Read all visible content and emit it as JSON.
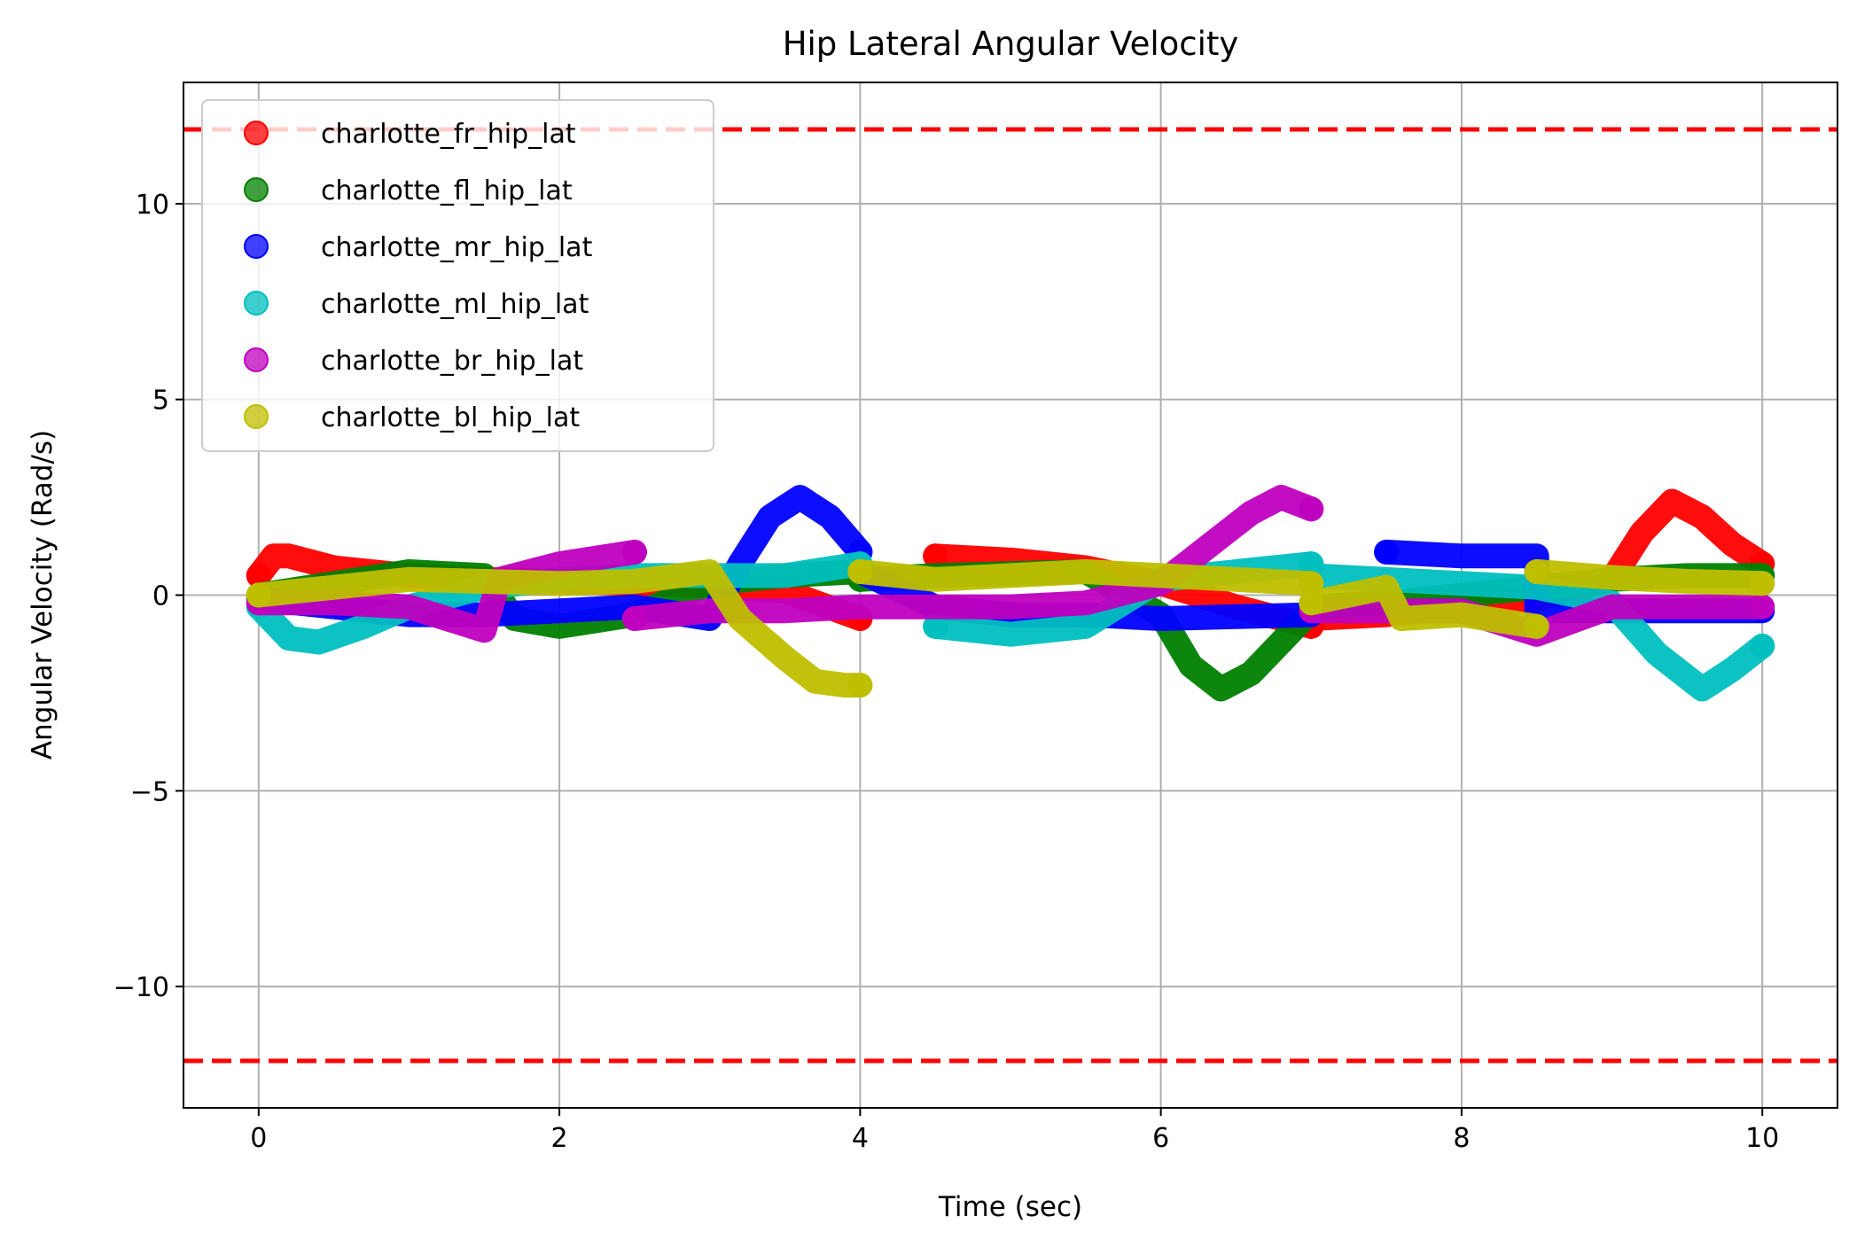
{
  "chart_data": {
    "type": "scatter",
    "title": "Hip Lateral Angular Velocity",
    "xlabel": "Time (sec)",
    "ylabel": "Angular Velocity (Rad/s)",
    "xlim": [
      -0.5,
      10.5
    ],
    "ylim": [
      -13.1,
      13.1
    ],
    "xticks": [
      0,
      2,
      4,
      6,
      8,
      10
    ],
    "xtick_labels": [
      "0",
      "2",
      "4",
      "6",
      "8",
      "10"
    ],
    "yticks": [
      -10,
      -5,
      0,
      5,
      10
    ],
    "ytick_labels": [
      "−10",
      "−5",
      "0",
      "5",
      "10"
    ],
    "grid": true,
    "legend_position": "upper-left",
    "reference_lines": [
      {
        "y": 11.9,
        "color": "#ff0000",
        "style": "dashed"
      },
      {
        "y": -11.9,
        "color": "#ff0000",
        "style": "dashed"
      }
    ],
    "series": [
      {
        "name": "charlotte_fr_hip_lat",
        "color": "#ff0000",
        "segments": [
          [
            [
              0,
              0.5
            ],
            [
              0.1,
              1.0
            ],
            [
              0.2,
              1.0
            ],
            [
              0.5,
              0.7
            ],
            [
              1.0,
              0.5
            ],
            [
              1.5,
              0.4
            ],
            [
              2.0,
              0.35
            ],
            [
              2.5,
              0.3
            ],
            [
              3.0,
              0.25
            ],
            [
              3.5,
              0.1
            ],
            [
              4.0,
              -0.6
            ]
          ],
          [
            [
              4.5,
              1.0
            ],
            [
              5.0,
              0.9
            ],
            [
              5.5,
              0.7
            ],
            [
              6.0,
              0.3
            ],
            [
              6.5,
              -0.3
            ],
            [
              7.0,
              -0.8
            ]
          ],
          [
            [
              7.0,
              -0.6
            ],
            [
              7.5,
              -0.5
            ],
            [
              8.0,
              -0.3
            ],
            [
              8.5,
              -0.1
            ],
            [
              9.0,
              0.4
            ],
            [
              9.2,
              1.6
            ],
            [
              9.4,
              2.4
            ],
            [
              9.6,
              2.0
            ],
            [
              9.8,
              1.3
            ],
            [
              10.0,
              0.8
            ]
          ]
        ]
      },
      {
        "name": "charlotte_fl_hip_lat",
        "color": "#008000",
        "segments": [
          [
            [
              0,
              0.0
            ],
            [
              0.5,
              0.3
            ],
            [
              1.0,
              0.6
            ],
            [
              1.5,
              0.5
            ],
            [
              1.7,
              -0.6
            ],
            [
              2.0,
              -0.8
            ],
            [
              2.5,
              -0.5
            ],
            [
              3.0,
              0.3
            ],
            [
              3.5,
              0.5
            ],
            [
              4.0,
              0.6
            ]
          ],
          [
            [
              4.0,
              0.4
            ],
            [
              4.5,
              0.5
            ],
            [
              5.0,
              0.55
            ],
            [
              5.5,
              0.6
            ],
            [
              6.0,
              -0.5
            ],
            [
              6.2,
              -1.8
            ],
            [
              6.4,
              -2.4
            ],
            [
              6.6,
              -2.0
            ],
            [
              6.8,
              -1.2
            ],
            [
              7.0,
              -0.4
            ]
          ],
          [
            [
              7.0,
              -0.3
            ],
            [
              7.5,
              -0.2
            ],
            [
              8.0,
              0.0
            ],
            [
              8.5,
              0.2
            ],
            [
              9.0,
              0.4
            ],
            [
              9.5,
              0.5
            ],
            [
              10.0,
              0.5
            ]
          ]
        ]
      },
      {
        "name": "charlotte_mr_hip_lat",
        "color": "#0000ff",
        "segments": [
          [
            [
              0,
              -0.1
            ],
            [
              0.5,
              -0.3
            ],
            [
              1.0,
              -0.5
            ],
            [
              1.5,
              -0.5
            ],
            [
              2.0,
              -0.4
            ],
            [
              2.5,
              -0.3
            ],
            [
              3.0,
              -0.6
            ],
            [
              3.2,
              0.8
            ],
            [
              3.4,
              2.0
            ],
            [
              3.6,
              2.5
            ],
            [
              3.8,
              2.0
            ],
            [
              4.0,
              1.1
            ]
          ],
          [
            [
              4.0,
              0.6
            ],
            [
              4.5,
              -0.3
            ],
            [
              5.0,
              -0.5
            ],
            [
              5.5,
              -0.5
            ],
            [
              6.0,
              -0.6
            ],
            [
              6.5,
              -0.55
            ],
            [
              7.0,
              -0.5
            ]
          ],
          [
            [
              7.5,
              1.1
            ],
            [
              8.0,
              1.0
            ],
            [
              8.5,
              1.0
            ],
            [
              8.5,
              -0.4
            ],
            [
              9.0,
              -0.4
            ],
            [
              9.5,
              -0.4
            ],
            [
              10.0,
              -0.4
            ]
          ]
        ]
      },
      {
        "name": "charlotte_ml_hip_lat",
        "color": "#00bfbf",
        "segments": [
          [
            [
              0,
              -0.3
            ],
            [
              0.2,
              -1.1
            ],
            [
              0.4,
              -1.2
            ],
            [
              0.7,
              -0.8
            ],
            [
              1.0,
              -0.3
            ],
            [
              1.5,
              0.2
            ],
            [
              2.0,
              0.4
            ],
            [
              2.5,
              0.5
            ],
            [
              3.0,
              0.5
            ],
            [
              3.5,
              0.5
            ],
            [
              4.0,
              0.8
            ]
          ],
          [
            [
              4.5,
              -0.8
            ],
            [
              5.0,
              -1.0
            ],
            [
              5.5,
              -0.8
            ],
            [
              6.0,
              0.4
            ],
            [
              6.5,
              0.6
            ],
            [
              7.0,
              0.8
            ]
          ],
          [
            [
              7.0,
              0.5
            ],
            [
              7.5,
              0.4
            ],
            [
              8.0,
              0.3
            ],
            [
              8.5,
              0.2
            ],
            [
              9.0,
              -0.2
            ],
            [
              9.3,
              -1.5
            ],
            [
              9.6,
              -2.4
            ],
            [
              9.8,
              -1.9
            ],
            [
              10.0,
              -1.3
            ]
          ]
        ]
      },
      {
        "name": "charlotte_br_hip_lat",
        "color": "#bf00bf",
        "segments": [
          [
            [
              0,
              -0.2
            ],
            [
              0.5,
              -0.2
            ],
            [
              1.0,
              -0.3
            ],
            [
              1.5,
              -0.9
            ],
            [
              1.6,
              0.4
            ],
            [
              2.0,
              0.8
            ],
            [
              2.5,
              1.1
            ]
          ],
          [
            [
              2.5,
              -0.6
            ],
            [
              3.0,
              -0.4
            ],
            [
              3.5,
              -0.4
            ],
            [
              4.0,
              -0.3
            ],
            [
              4.5,
              -0.3
            ],
            [
              5.0,
              -0.3
            ],
            [
              5.5,
              -0.2
            ],
            [
              6.0,
              0.3
            ],
            [
              6.3,
              1.2
            ],
            [
              6.6,
              2.1
            ],
            [
              6.8,
              2.5
            ],
            [
              7.0,
              2.2
            ]
          ],
          [
            [
              7.0,
              -0.4
            ],
            [
              7.5,
              -0.4
            ],
            [
              8.0,
              -0.4
            ],
            [
              8.5,
              -1.0
            ],
            [
              9.0,
              -0.3
            ],
            [
              9.5,
              -0.3
            ],
            [
              10.0,
              -0.3
            ]
          ]
        ]
      },
      {
        "name": "charlotte_bl_hip_lat",
        "color": "#bfbf00",
        "segments": [
          [
            [
              0,
              0.0
            ],
            [
              0.5,
              0.2
            ],
            [
              1.0,
              0.4
            ],
            [
              1.5,
              0.35
            ],
            [
              2.0,
              0.3
            ],
            [
              2.5,
              0.35
            ],
            [
              3.0,
              0.6
            ],
            [
              3.2,
              -0.6
            ],
            [
              3.5,
              -1.6
            ],
            [
              3.7,
              -2.2
            ],
            [
              3.9,
              -2.3
            ],
            [
              4.0,
              -2.3
            ]
          ],
          [
            [
              4.0,
              0.6
            ],
            [
              4.5,
              0.4
            ],
            [
              5.0,
              0.5
            ],
            [
              5.5,
              0.6
            ],
            [
              6.0,
              0.5
            ],
            [
              6.5,
              0.4
            ],
            [
              7.0,
              0.3
            ]
          ],
          [
            [
              7.0,
              -0.2
            ],
            [
              7.5,
              0.2
            ],
            [
              7.6,
              -0.6
            ],
            [
              8.0,
              -0.5
            ],
            [
              8.5,
              -0.8
            ]
          ],
          [
            [
              8.5,
              0.6
            ],
            [
              9.0,
              0.45
            ],
            [
              9.5,
              0.35
            ],
            [
              10.0,
              0.3
            ]
          ]
        ]
      }
    ]
  }
}
